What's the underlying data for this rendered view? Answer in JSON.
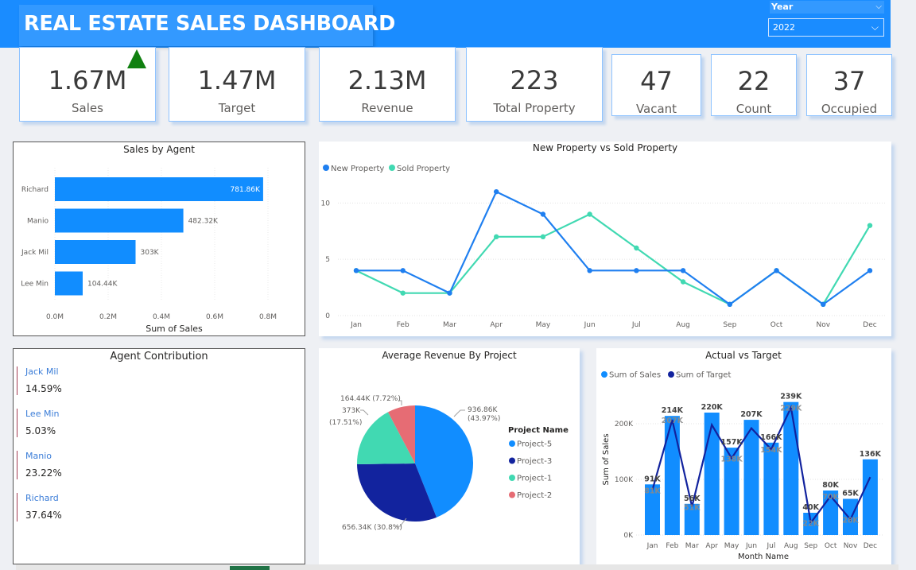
{
  "header": {
    "title": "REAL ESTATE SALES DASHBOARD",
    "year_label": "Year",
    "year_value": "2022",
    "chevron": "⌵"
  },
  "kpis": {
    "sales": {
      "value": "1.67M",
      "label": "Sales"
    },
    "target": {
      "value": "1.47M",
      "label": "Target"
    },
    "revenue": {
      "value": "2.13M",
      "label": "Revenue"
    },
    "total_property": {
      "value": "223",
      "label": "Total Property"
    },
    "vacant": {
      "value": "47",
      "label": "Vacant"
    },
    "count": {
      "value": "22",
      "label": "Count"
    },
    "occupied": {
      "value": "37",
      "label": "Occupied"
    }
  },
  "colors": {
    "bar_blue": "#118dff",
    "dark_blue": "#12239e",
    "teal": "#41d9b2",
    "coral": "#e66c74",
    "line_blue": "#1f7ff0",
    "up_arrow": "#108010"
  },
  "contribution": {
    "title": "Agent Contribution",
    "items": [
      {
        "name": "Jack Mil",
        "value": "14.59%"
      },
      {
        "name": "Lee Min",
        "value": "5.03%"
      },
      {
        "name": "Manio",
        "value": "23.22%"
      },
      {
        "name": "Richard",
        "value": "37.64%"
      }
    ]
  },
  "chart_data": [
    {
      "id": "sales_by_agent",
      "type": "bar",
      "orientation": "horizontal",
      "title": "Sales by Agent",
      "xlabel": "Sum of Sales",
      "ylabel": "",
      "categories": [
        "Richard",
        "Manio",
        "Jack Mil",
        "Lee Min"
      ],
      "values": [
        781860,
        482320,
        303000,
        104440
      ],
      "data_labels": [
        "781.86K",
        "482.32K",
        "303K",
        "104.44K"
      ],
      "xlim": [
        0,
        800000
      ],
      "xticks": [
        0,
        200000,
        400000,
        600000,
        800000
      ],
      "xtick_labels": [
        "0.0M",
        "0.2M",
        "0.4M",
        "0.6M",
        "0.8M"
      ]
    },
    {
      "id": "new_vs_sold",
      "type": "line",
      "title": "New Property vs Sold Property",
      "x": [
        "Jan",
        "Feb",
        "Mar",
        "Apr",
        "May",
        "Jun",
        "Jul",
        "Aug",
        "Sep",
        "Oct",
        "Nov",
        "Dec"
      ],
      "series": [
        {
          "name": "New Property",
          "values": [
            4,
            4,
            2,
            11,
            9,
            4,
            4,
            4,
            1,
            4,
            1,
            4
          ]
        },
        {
          "name": "Sold Property",
          "values": [
            4,
            2,
            2,
            7,
            7,
            9,
            6,
            3,
            1,
            4,
            1,
            8
          ]
        }
      ],
      "ylim": [
        0,
        12
      ],
      "yticks": [
        0,
        5,
        10
      ],
      "legend": "top-left"
    },
    {
      "id": "avg_revenue_by_project",
      "type": "pie",
      "title": "Average Revenue By Project",
      "legend_title": "Project Name",
      "slices": [
        {
          "name": "Project-5",
          "value": 936860,
          "label": "936.86K",
          "pct_label": "(43.97%)"
        },
        {
          "name": "Project-3",
          "value": 656340,
          "label": "656.34K (30.8%)",
          "pct_label": ""
        },
        {
          "name": "Project-1",
          "value": 373000,
          "label": "373K",
          "pct_label": "(17.51%)"
        },
        {
          "name": "Project-2",
          "value": 164440,
          "label": "164.44K (7.72%)",
          "pct_label": ""
        }
      ]
    },
    {
      "id": "actual_vs_target",
      "type": "bar",
      "title": "Actual vs Target",
      "xlabel": "Month Name",
      "ylabel": "Sum of Sales",
      "categories": [
        "Jan",
        "Feb",
        "Mar",
        "Apr",
        "May",
        "Jun",
        "Jul",
        "Aug",
        "Sep",
        "Oct",
        "Nov",
        "Dec"
      ],
      "series": [
        {
          "name": "Sum of Sales",
          "kind": "bar",
          "values": [
            91000,
            214000,
            56000,
            220000,
            157000,
            207000,
            166000,
            239000,
            40000,
            80000,
            65000,
            136000
          ],
          "labels": [
            "91K",
            "214K",
            "56K",
            "220K",
            "157K",
            "207K",
            "166K",
            "239K",
            "40K",
            "80K",
            "65K",
            "136K"
          ]
        },
        {
          "name": "Sum of Target",
          "kind": "line",
          "values": [
            81000,
            207000,
            51000,
            198000,
            138000,
            192000,
            154000,
            229000,
            22000,
            70000,
            28000,
            104000
          ],
          "labels": [
            "81K",
            "207K",
            "51K",
            "",
            "138K",
            "",
            "154K",
            "229K",
            "22K",
            "70K",
            "28K",
            ""
          ]
        }
      ],
      "ylim": [
        0,
        250000
      ],
      "yticks": [
        0,
        100000,
        200000
      ],
      "ytick_labels": [
        "0K",
        "100K",
        "200K"
      ],
      "legend": "top-left"
    }
  ]
}
